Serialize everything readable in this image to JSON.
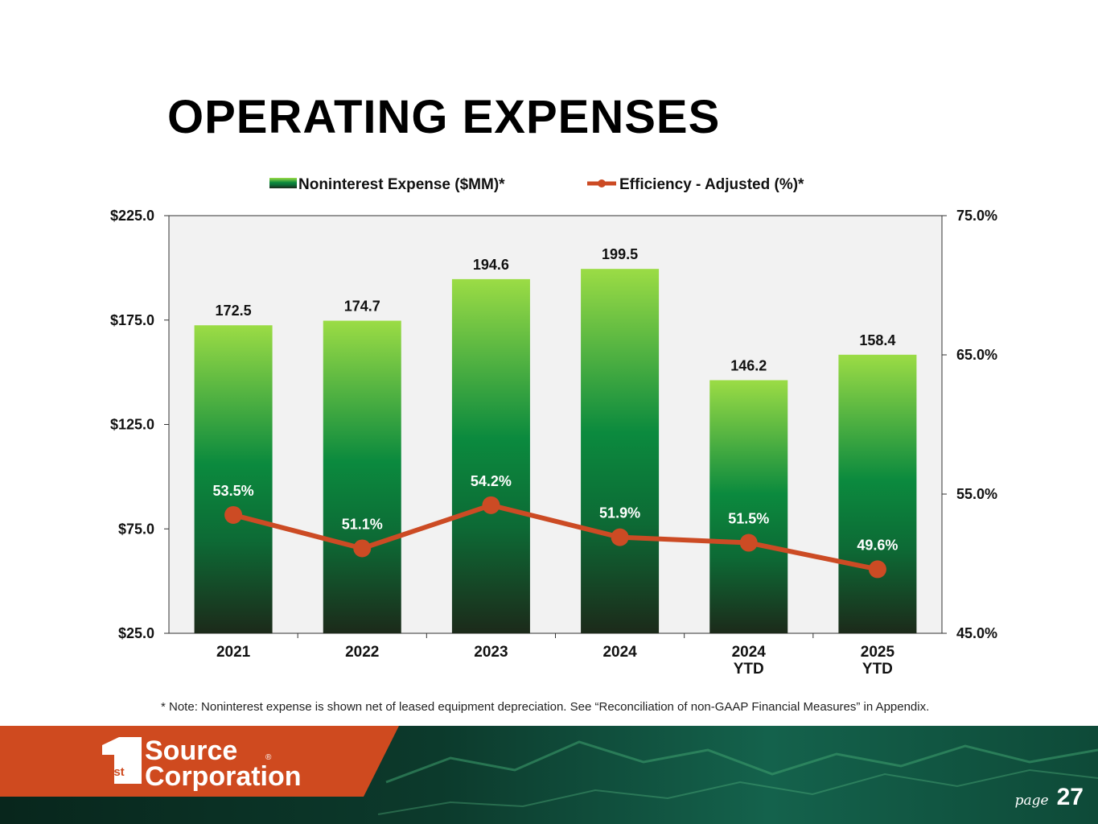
{
  "page": {
    "title": "OPERATING EXPENSES",
    "note": "* Note: Noninterest expense is shown net of leased equipment depreciation. See “Reconciliation of non-GAAP Financial Measures” in Appendix.",
    "page_word": "page",
    "page_number": "27"
  },
  "brand": {
    "logo_lines": [
      "Source",
      "Corporation"
    ],
    "logo_badge": "1st",
    "accent": "#cf4a1f"
  },
  "chart_data": {
    "type": "bar",
    "categories": [
      [
        "2021"
      ],
      [
        "2022"
      ],
      [
        "2023"
      ],
      [
        "2024"
      ],
      [
        "2024",
        "YTD"
      ],
      [
        "2025",
        "YTD"
      ]
    ],
    "series": [
      {
        "name": "Noninterest Expense ($MM)*",
        "axis": "left",
        "kind": "bar",
        "values": [
          172.5,
          174.7,
          194.6,
          199.5,
          146.2,
          158.4
        ],
        "labels": [
          "172.5",
          "174.7",
          "194.6",
          "199.5",
          "146.2",
          "158.4"
        ]
      },
      {
        "name": "Efficiency - Adjusted (%)*",
        "axis": "right",
        "kind": "line",
        "color": "#cc4b24",
        "values": [
          53.5,
          51.1,
          54.2,
          51.9,
          51.5,
          49.6
        ],
        "labels": [
          "53.5%",
          "51.1%",
          "54.2%",
          "51.9%",
          "51.5%",
          "49.6%"
        ]
      }
    ],
    "y_left": {
      "min": 25,
      "max": 225,
      "ticks": [
        "$225.0",
        "$175.0",
        "$125.0",
        "$75.0",
        "$25.0"
      ]
    },
    "y_right": {
      "min": 45,
      "max": 75,
      "ticks": [
        "75.0%",
        "65.0%",
        "55.0%",
        "45.0%"
      ]
    },
    "legend_position": "top-center",
    "grid": false
  }
}
